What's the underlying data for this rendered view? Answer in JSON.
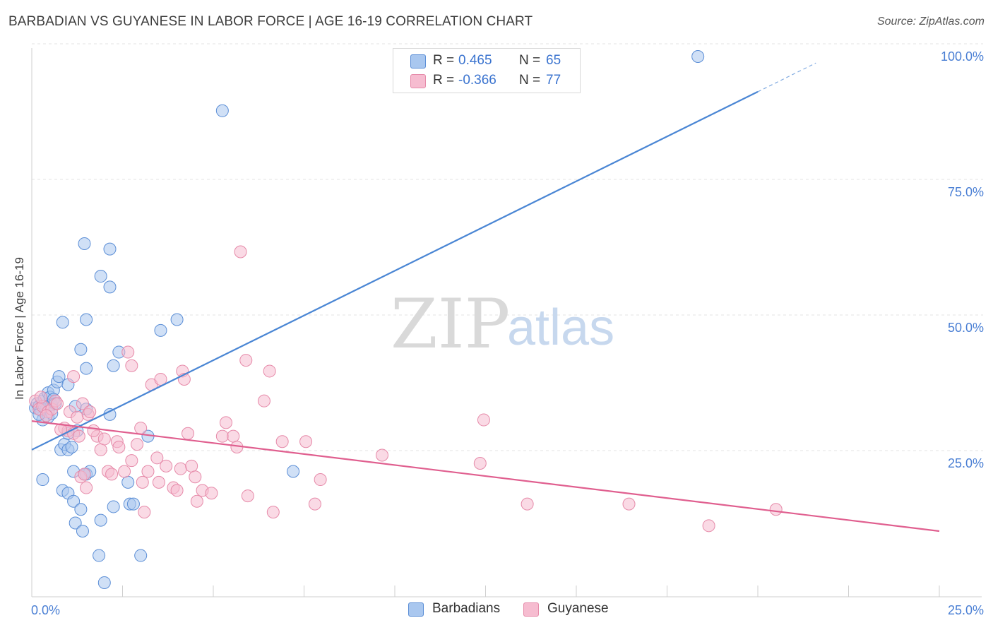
{
  "header": {
    "title": "BARBADIAN VS GUYANESE IN LABOR FORCE | AGE 16-19 CORRELATION CHART",
    "source": "Source: ZipAtlas.com"
  },
  "watermark": {
    "zip": "ZIP",
    "atlas": "atlas"
  },
  "legend": {
    "rows": [
      {
        "r_label": "R =",
        "r_value": "0.465",
        "n_label": "N =",
        "n_value": "65",
        "color": "#a9c7ef",
        "stroke": "#5b8ed6"
      },
      {
        "r_label": "R =",
        "r_value": "-0.366",
        "n_label": "N =",
        "n_value": "77",
        "color": "#f6bcd0",
        "stroke": "#e68aa9"
      }
    ]
  },
  "bottom_legend": {
    "items": [
      {
        "label": "Barbadians",
        "color": "#a9c7ef",
        "stroke": "#5b8ed6"
      },
      {
        "label": "Guyanese",
        "color": "#f6bcd0",
        "stroke": "#e68aa9"
      }
    ]
  },
  "chart_data": {
    "type": "scatter",
    "title": "BARBADIAN VS GUYANESE IN LABOR FORCE | AGE 16-19 CORRELATION CHART",
    "xlabel": "",
    "ylabel": "In Labor Force | Age 16-19",
    "xlim": [
      0,
      25
    ],
    "ylim": [
      0,
      100
    ],
    "x_tick_labels": [
      "0.0%",
      "25.0%"
    ],
    "y_tick_labels": [
      "100.0%",
      "75.0%",
      "50.0%",
      "25.0%"
    ],
    "y_tick_values": [
      100,
      75,
      50,
      25
    ],
    "grid": true,
    "series": [
      {
        "name": "Barbadians",
        "color": "#4a86d4",
        "fill": "#a9c7ef",
        "stroke": "#5b8ed6",
        "trend": {
          "x0": 0,
          "y0": 27.5,
          "x1": 20,
          "y1": 93.5,
          "dash_to_x": 21.6,
          "dash_to_y": 98.8
        },
        "points": [
          [
            0.1,
            35.2
          ],
          [
            0.15,
            36.0
          ],
          [
            0.2,
            35.5
          ],
          [
            0.25,
            34.8
          ],
          [
            0.3,
            36.5
          ],
          [
            0.35,
            37.0
          ],
          [
            0.4,
            35.0
          ],
          [
            0.45,
            38.0
          ],
          [
            0.5,
            37.2
          ],
          [
            0.55,
            35.8
          ],
          [
            0.6,
            38.5
          ],
          [
            0.3,
            33.0
          ],
          [
            0.45,
            33.5
          ],
          [
            0.6,
            36.8
          ],
          [
            0.7,
            40.0
          ],
          [
            0.75,
            41.0
          ],
          [
            1.0,
            39.5
          ],
          [
            1.2,
            35.5
          ],
          [
            0.8,
            27.5
          ],
          [
            0.9,
            28.5
          ],
          [
            1.0,
            27.5
          ],
          [
            1.1,
            28.0
          ],
          [
            1.25,
            31.0
          ],
          [
            1.0,
            30.5
          ],
          [
            0.3,
            22.0
          ],
          [
            0.85,
            20.0
          ],
          [
            1.0,
            19.5
          ],
          [
            1.15,
            18.0
          ],
          [
            1.35,
            16.5
          ],
          [
            1.2,
            14.0
          ],
          [
            1.4,
            12.5
          ],
          [
            1.15,
            23.5
          ],
          [
            1.5,
            23.0
          ],
          [
            1.6,
            23.5
          ],
          [
            1.45,
            23.0
          ],
          [
            1.9,
            14.5
          ],
          [
            2.25,
            17.0
          ],
          [
            2.7,
            17.5
          ],
          [
            2.8,
            17.5
          ],
          [
            2.65,
            21.5
          ],
          [
            1.85,
            8.0
          ],
          [
            2.0,
            3.0
          ],
          [
            3.0,
            8.0
          ],
          [
            0.85,
            51.0
          ],
          [
            1.35,
            46.0
          ],
          [
            1.5,
            42.5
          ],
          [
            1.5,
            35.0
          ],
          [
            2.15,
            34.0
          ],
          [
            1.45,
            65.5
          ],
          [
            2.15,
            64.5
          ],
          [
            1.9,
            59.5
          ],
          [
            2.15,
            57.5
          ],
          [
            1.5,
            51.5
          ],
          [
            2.4,
            45.5
          ],
          [
            2.25,
            43.0
          ],
          [
            3.2,
            30.0
          ],
          [
            3.55,
            49.5
          ],
          [
            4.0,
            51.5
          ],
          [
            5.25,
            90.0
          ],
          [
            7.2,
            23.5
          ],
          [
            18.35,
            100.0
          ],
          [
            0.2,
            34.0
          ],
          [
            0.35,
            35.5
          ],
          [
            0.55,
            34.2
          ],
          [
            0.65,
            36.0
          ]
        ]
      },
      {
        "name": "Guyanese",
        "color": "#e05f8f",
        "fill": "#f6bcd0",
        "stroke": "#e68aa9",
        "trend": {
          "x0": 0,
          "y0": 32.8,
          "x1": 25,
          "y1": 12.5
        },
        "points": [
          [
            0.1,
            36.5
          ],
          [
            0.2,
            35.0
          ],
          [
            0.3,
            35.5
          ],
          [
            0.45,
            34.5
          ],
          [
            0.55,
            35.0
          ],
          [
            0.65,
            36.5
          ],
          [
            0.7,
            36.0
          ],
          [
            0.9,
            31.5
          ],
          [
            1.0,
            31.0
          ],
          [
            1.05,
            34.5
          ],
          [
            1.15,
            30.5
          ],
          [
            1.25,
            33.5
          ],
          [
            1.3,
            30.0
          ],
          [
            1.4,
            36.0
          ],
          [
            1.55,
            34.0
          ],
          [
            1.6,
            34.5
          ],
          [
            1.35,
            22.5
          ],
          [
            1.45,
            23.0
          ],
          [
            1.5,
            20.5
          ],
          [
            1.8,
            30.0
          ],
          [
            1.9,
            27.5
          ],
          [
            2.0,
            29.5
          ],
          [
            2.1,
            23.5
          ],
          [
            2.2,
            23.0
          ],
          [
            2.35,
            29.0
          ],
          [
            2.4,
            28.0
          ],
          [
            2.55,
            23.5
          ],
          [
            2.65,
            45.5
          ],
          [
            2.75,
            43.0
          ],
          [
            2.75,
            25.5
          ],
          [
            3.0,
            31.5
          ],
          [
            3.05,
            21.5
          ],
          [
            3.2,
            23.5
          ],
          [
            3.1,
            16.0
          ],
          [
            3.3,
            39.5
          ],
          [
            3.45,
            26.0
          ],
          [
            3.55,
            40.5
          ],
          [
            3.5,
            21.5
          ],
          [
            3.7,
            24.5
          ],
          [
            3.9,
            20.5
          ],
          [
            4.0,
            20.0
          ],
          [
            4.1,
            24.0
          ],
          [
            4.15,
            42.0
          ],
          [
            4.2,
            40.5
          ],
          [
            4.3,
            30.5
          ],
          [
            4.4,
            24.5
          ],
          [
            4.5,
            22.5
          ],
          [
            4.55,
            18.0
          ],
          [
            4.7,
            20.0
          ],
          [
            4.95,
            19.5
          ],
          [
            5.25,
            30.0
          ],
          [
            5.35,
            32.5
          ],
          [
            5.55,
            30.0
          ],
          [
            5.65,
            28.0
          ],
          [
            5.75,
            64.0
          ],
          [
            5.9,
            44.0
          ],
          [
            5.95,
            19.0
          ],
          [
            6.4,
            36.5
          ],
          [
            6.55,
            42.0
          ],
          [
            6.65,
            16.0
          ],
          [
            6.9,
            29.0
          ],
          [
            7.55,
            29.0
          ],
          [
            7.8,
            17.5
          ],
          [
            7.95,
            22.0
          ],
          [
            9.65,
            26.5
          ],
          [
            12.35,
            25.0
          ],
          [
            12.45,
            33.0
          ],
          [
            13.65,
            17.5
          ],
          [
            16.45,
            17.5
          ],
          [
            18.65,
            13.5
          ],
          [
            20.5,
            16.5
          ],
          [
            1.15,
            41.0
          ],
          [
            0.4,
            33.8
          ],
          [
            0.8,
            31.2
          ],
          [
            2.9,
            28.5
          ],
          [
            1.7,
            31.0
          ],
          [
            0.25,
            37.2
          ]
        ]
      }
    ]
  }
}
